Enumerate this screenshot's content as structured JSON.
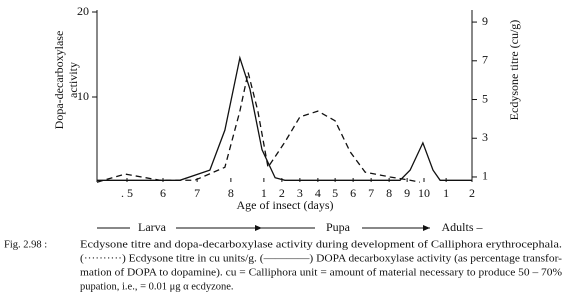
{
  "chart_data": {
    "type": "line",
    "ylabel": [
      "Dopa-decarboxylase",
      "activity"
    ],
    "y2label": "Ecdysone titre (cu/g)",
    "xlabel": "Age of insect (days)",
    "xlim": [
      0,
      100
    ],
    "xticks": [
      {
        "value": 8,
        "label": ". 5"
      },
      {
        "value": 17.6,
        "label": "6"
      },
      {
        "value": 26.7,
        "label": "7"
      },
      {
        "value": 35.7,
        "label": "8"
      },
      {
        "value": 44.5,
        "label": "1"
      },
      {
        "value": 49.3,
        "label": "2"
      },
      {
        "value": 54.1,
        "label": "3"
      },
      {
        "value": 58.9,
        "label": "4"
      },
      {
        "value": 63.5,
        "label": "5"
      },
      {
        "value": 68.3,
        "label": "6"
      },
      {
        "value": 73.1,
        "label": "7"
      },
      {
        "value": 77.9,
        "label": "8"
      },
      {
        "value": 82.7,
        "label": "9"
      },
      {
        "value": 87.2,
        "label": "10"
      },
      {
        "value": 93.1,
        "label": "1"
      },
      {
        "value": 100,
        "label": "2"
      }
    ],
    "ylim": [
      0,
      20
    ],
    "yticks": [
      10,
      20
    ],
    "y2lim": [
      0.74,
      9.52
    ],
    "y2ticks": [
      1,
      3,
      5,
      7,
      9
    ],
    "series": [
      {
        "name": "DOPA decarboxylase activity",
        "color": "#111111",
        "dash": false,
        "x": [
          0,
          8.8,
          22.1,
          30.1,
          34.1,
          38.1,
          40.8,
          44.0,
          47.5,
          50.1,
          80.8,
          83.5,
          86.9,
          89.6,
          91.5,
          100
        ],
        "values": [
          0.2,
          0.2,
          0.2,
          1.4,
          6.1,
          14.6,
          10.9,
          3.8,
          0.5,
          0.2,
          0.2,
          1.4,
          4.6,
          1.4,
          0.2,
          0.2
        ]
      },
      {
        "name": "Ecdysone titre",
        "color": "#111111",
        "dash": true,
        "axis": "y2",
        "x": [
          0,
          7.5,
          16.8,
          26.1,
          34.1,
          38.1,
          40.3,
          42.9,
          45.6,
          50.1,
          54.1,
          58.9,
          63.5,
          67.5,
          71.5,
          78.1,
          83.5,
          86.1
        ],
        "values": [
          0.73,
          1.15,
          0.83,
          0.83,
          1.5,
          4.4,
          6.4,
          4.4,
          1.5,
          2.8,
          4.1,
          4.4,
          3.9,
          2.3,
          1.25,
          1.0,
          0.83,
          0.73
        ]
      }
    ],
    "stages": [
      "Larva",
      "Pupa",
      "Adults –"
    ],
    "caption": {
      "label": "Fig. 2.98 :",
      "lines": [
        "Ecdysone titre and dopa-decarboxylase activity during development of Calliphora erythrocephala.",
        "(··········) Ecdysone titre in cu units/g. (————) DOPA decarboxylase activity (as percentage transfor-",
        "mation of DOPA to dopamine). cu = Calliphora unit = amount of material necessary to produce 50 – 70%",
        "pupation, i.e., = 0.01 μg α ecdyzone."
      ]
    }
  }
}
